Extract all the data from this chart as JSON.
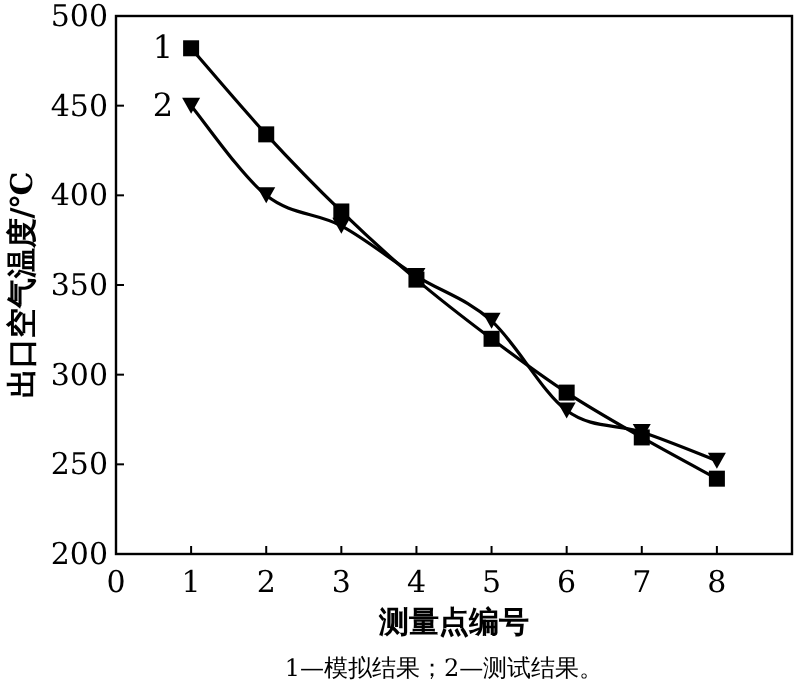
{
  "chart_data": {
    "type": "line",
    "xlabel": "测量点编号",
    "ylabel": "出口空气温度/℃",
    "annotations": [
      "1—模拟结果；2—测试结果。"
    ],
    "x": [
      1,
      2,
      3,
      4,
      5,
      6,
      7,
      8
    ],
    "series": [
      {
        "name": "1",
        "color": "#000000",
        "marker": "square",
        "values": [
          482,
          434,
          391,
          353,
          320,
          290,
          265,
          242
        ]
      },
      {
        "name": "2",
        "color": "#000000",
        "marker": "triangle",
        "values": [
          450,
          400,
          383,
          355,
          330,
          280,
          268,
          252
        ]
      }
    ],
    "xlim": [
      0,
      9
    ],
    "ylim": [
      200,
      500
    ],
    "xticks": [
      0,
      1,
      2,
      3,
      4,
      5,
      6,
      7,
      8
    ],
    "yticks": [
      200,
      250,
      300,
      350,
      400,
      450,
      500
    ],
    "grid": false,
    "line_style": "solid"
  }
}
